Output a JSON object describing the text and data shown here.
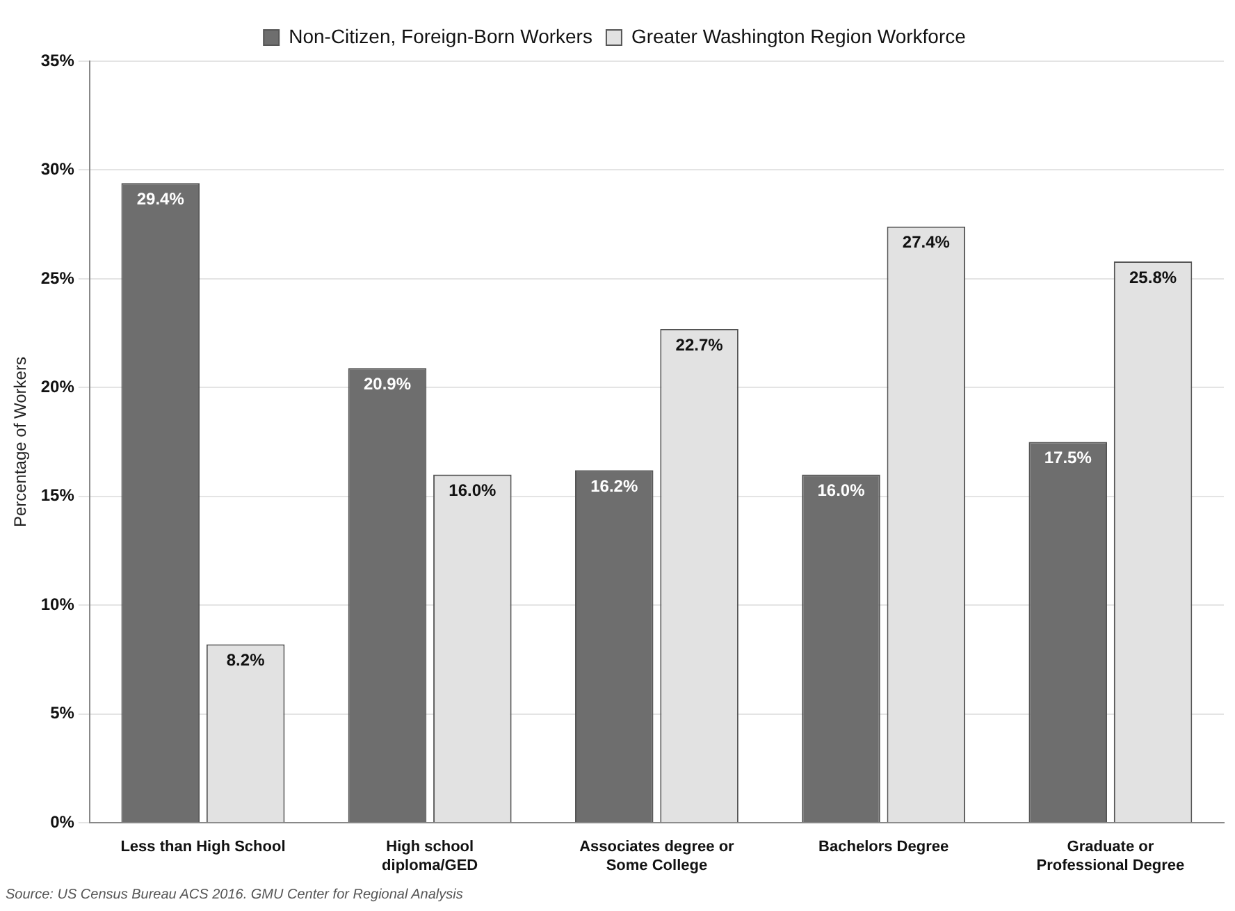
{
  "chart_data": {
    "type": "bar",
    "ylabel": "Percentage of Workers",
    "categories": [
      "Less than High School",
      "High school diploma/GED",
      "Associates degree or Some College",
      "Bachelors Degree",
      "Graduate or Professional Degree"
    ],
    "series": [
      {
        "name": "Non-Citizen, Foreign-Born Workers",
        "color": "#6e6e6e",
        "values": [
          29.4,
          20.9,
          16.2,
          16.0,
          17.5
        ],
        "value_labels": [
          "29.4%",
          "20.9%",
          "16.2%",
          "16.0%",
          "17.5%"
        ]
      },
      {
        "name": "Greater Washington Region Workforce",
        "color": "#e2e2e2",
        "values": [
          8.2,
          16.0,
          22.7,
          27.4,
          25.8
        ],
        "value_labels": [
          "8.2%",
          "16.0%",
          "22.7%",
          "27.4%",
          "25.8%"
        ]
      }
    ],
    "ylim": [
      0,
      35
    ],
    "yticks": [
      {
        "value": 0,
        "label": "0%"
      },
      {
        "value": 5,
        "label": "5%"
      },
      {
        "value": 10,
        "label": "10%"
      },
      {
        "value": 15,
        "label": "15%"
      },
      {
        "value": 20,
        "label": "20%"
      },
      {
        "value": 25,
        "label": "25%"
      },
      {
        "value": 30,
        "label": "30%"
      },
      {
        "value": 35,
        "label": "35%"
      }
    ],
    "grid": "y",
    "legend": "top",
    "annotations": [
      "Source: US Census Bureau ACS 2016. GMU Center for Regional Analysis"
    ]
  }
}
